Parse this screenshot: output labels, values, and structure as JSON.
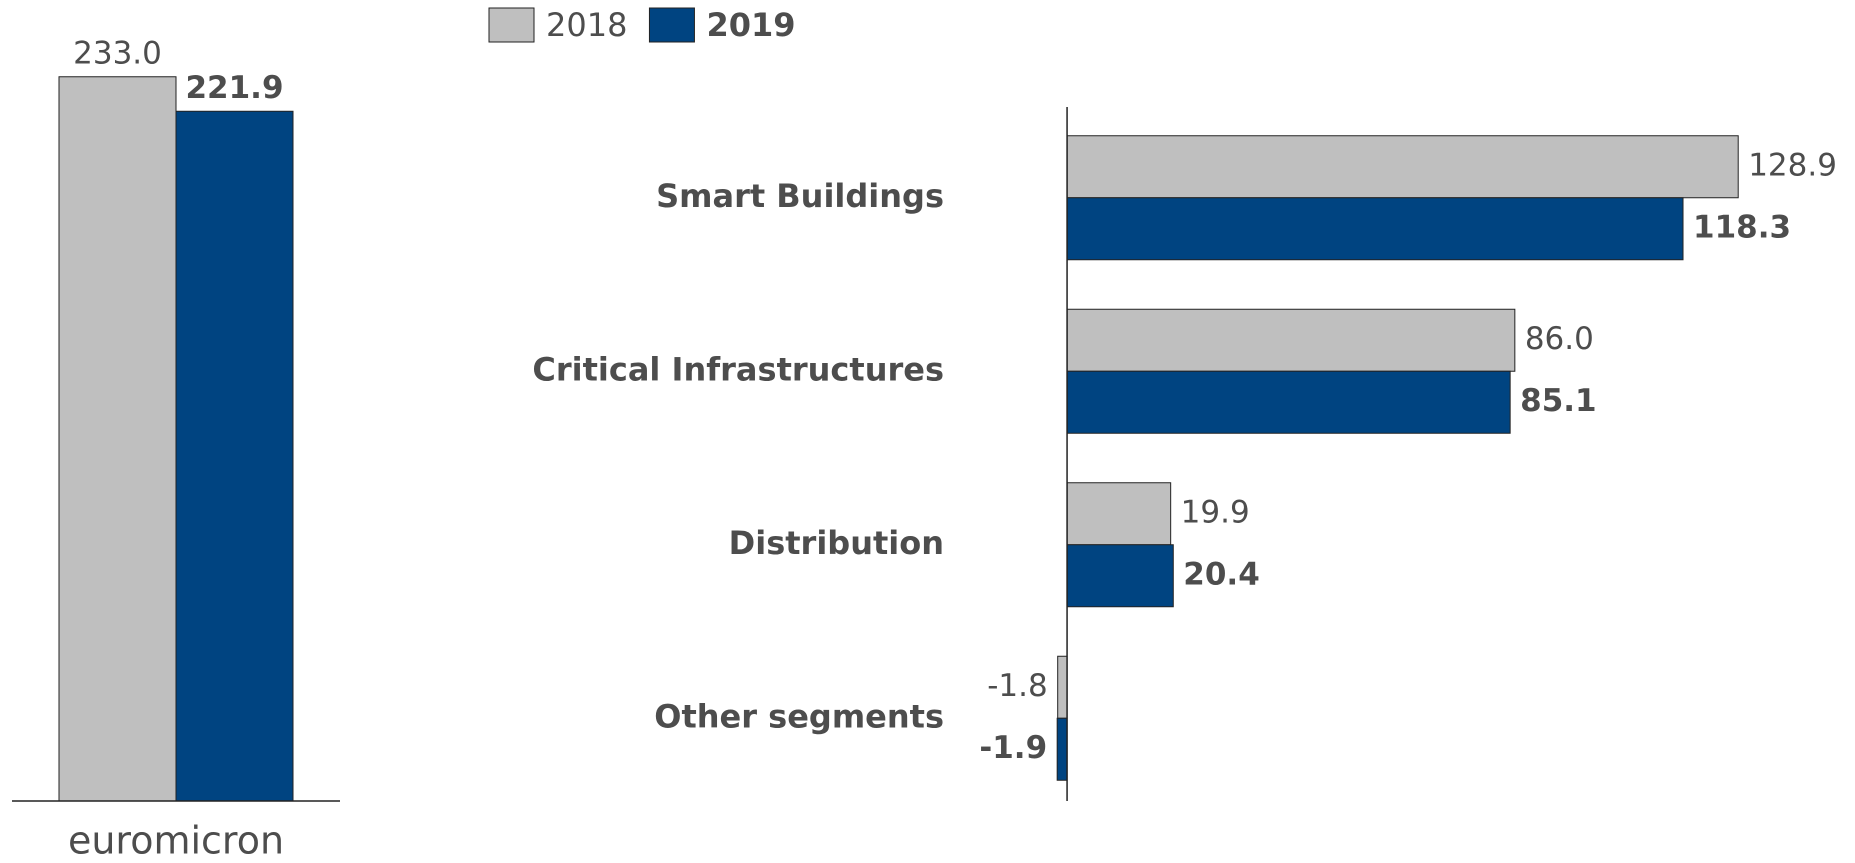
{
  "chart_data": [
    {
      "type": "bar",
      "categories": [
        "euromicron"
      ],
      "series": [
        {
          "color": "#bfbfbf",
          "values": [
            233.0
          ],
          "value_labels": [
            "233.0"
          ]
        },
        {
          "color": "#004481",
          "values": [
            221.9
          ],
          "value_labels": [
            "221.9"
          ]
        }
      ],
      "ylim": [
        0,
        240
      ]
    },
    {
      "type": "hbar",
      "categories": [
        "Smart Buildings",
        "Critical Infrastructures",
        "Distribution",
        "Other segments"
      ],
      "series": [
        {
          "name": "2018",
          "color": "#bfbfbf",
          "values": [
            128.9,
            86.0,
            19.9,
            -1.8
          ],
          "value_labels": [
            "128.9",
            "86.0",
            "19.9",
            "-1.8"
          ]
        },
        {
          "name": "2019",
          "color": "#004481",
          "values": [
            118.3,
            85.1,
            20.4,
            -1.9
          ],
          "value_labels": [
            "118.3",
            "85.1",
            "20.4",
            "-1.9"
          ]
        }
      ],
      "xlim": [
        -10,
        140
      ]
    }
  ]
}
